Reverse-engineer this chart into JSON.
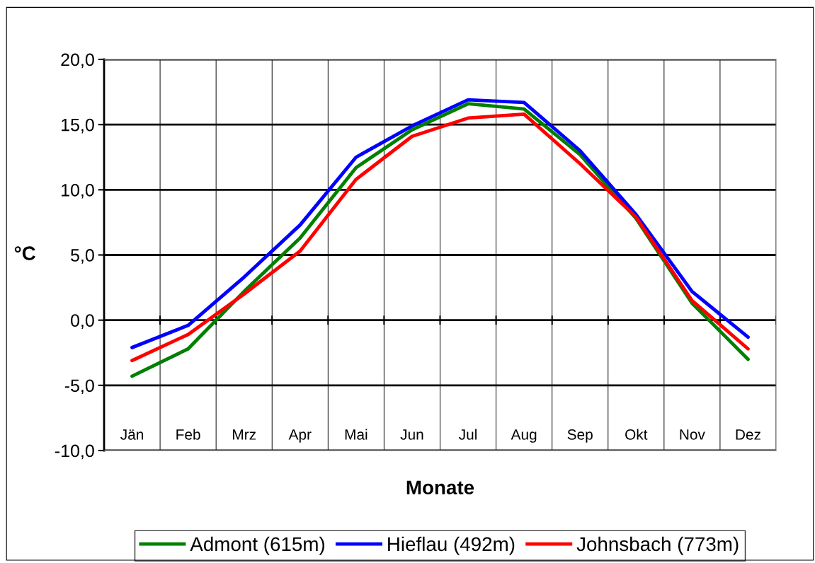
{
  "chart_data": {
    "type": "line",
    "xlabel": "Monate",
    "ylabel": "°C",
    "categories": [
      "Jän",
      "Feb",
      "Mrz",
      "Apr",
      "Mai",
      "Jun",
      "Jul",
      "Aug",
      "Sep",
      "Okt",
      "Nov",
      "Dez"
    ],
    "series": [
      {
        "name": "Admont (615m)",
        "color": "#008000",
        "values": [
          -4.3,
          -2.2,
          2.2,
          6.3,
          11.7,
          14.6,
          16.6,
          16.2,
          12.7,
          7.8,
          1.3,
          -3.0
        ]
      },
      {
        "name": "Hieflau (492m)",
        "color": "#0000ff",
        "values": [
          -2.1,
          -0.4,
          3.3,
          7.3,
          12.5,
          14.9,
          16.9,
          16.7,
          13.0,
          8.1,
          2.2,
          -1.3
        ]
      },
      {
        "name": "Johnsbach (773m)",
        "color": "#ff0000",
        "values": [
          -3.1,
          -1.1,
          2.0,
          5.3,
          10.8,
          14.1,
          15.5,
          15.8,
          12.0,
          7.9,
          1.5,
          -2.2
        ]
      }
    ],
    "ylim": [
      -10,
      20
    ],
    "yticks": [
      {
        "value": -10,
        "label": "-10,0"
      },
      {
        "value": -5,
        "label": "-5,0"
      },
      {
        "value": 0,
        "label": "0,0"
      },
      {
        "value": 5,
        "label": "5,0"
      },
      {
        "value": 10,
        "label": "10,0"
      },
      {
        "value": 15,
        "label": "15,0"
      },
      {
        "value": 20,
        "label": "20,0"
      }
    ],
    "grid": true,
    "legend": "bottom",
    "marker": "none",
    "line_style": "solid"
  }
}
